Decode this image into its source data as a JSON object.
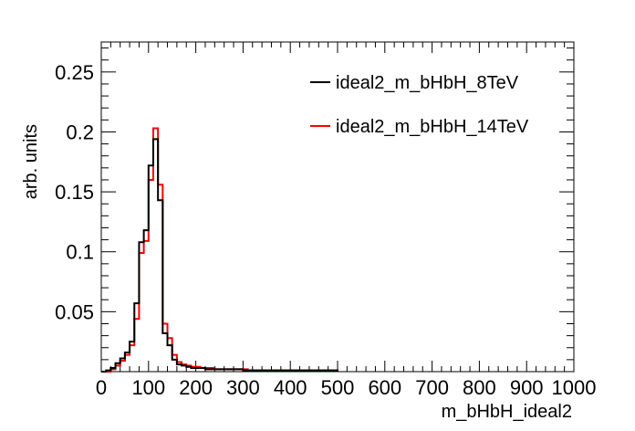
{
  "chart_data": {
    "type": "step-histogram",
    "title": "",
    "xlabel": "m_bHbH_ideal2",
    "ylabel": "arb. units",
    "xlim": [
      0,
      1000
    ],
    "ylim": [
      0,
      0.275
    ],
    "xticks": [
      0,
      100,
      200,
      300,
      400,
      500,
      600,
      700,
      800,
      900,
      1000
    ],
    "yticks": [
      0.05,
      0.1,
      0.15,
      0.2,
      0.25
    ],
    "bin_width": 10,
    "legend_position": "top-right",
    "grid": false,
    "series": [
      {
        "name": "ideal2_m_bHbH_8TeV",
        "color": "#000000",
        "bins_start": 0,
        "values": [
          0.0,
          0.001,
          0.003,
          0.007,
          0.011,
          0.016,
          0.025,
          0.057,
          0.108,
          0.118,
          0.172,
          0.194,
          0.143,
          0.032,
          0.022,
          0.01,
          0.006,
          0.005,
          0.004,
          0.003,
          0.003,
          0.003,
          0.002,
          0.002,
          0.002,
          0.002,
          0.002,
          0.002,
          0.002,
          0.002,
          0.001,
          0.001,
          0.001,
          0.001,
          0.001,
          0.001,
          0.001,
          0.001,
          0.001,
          0.001,
          0.001,
          0.001,
          0.001,
          0.001,
          0.001,
          0.001,
          0.001,
          0.001,
          0.001,
          0.001
        ]
      },
      {
        "name": "ideal2_m_bHbH_14TeV",
        "color": "#ff0000",
        "bins_start": 0,
        "values": [
          0.0,
          0.0,
          0.002,
          0.005,
          0.009,
          0.014,
          0.022,
          0.044,
          0.099,
          0.109,
          0.16,
          0.203,
          0.156,
          0.04,
          0.028,
          0.014,
          0.008,
          0.006,
          0.005,
          0.004,
          0.004,
          0.003,
          0.003,
          0.003,
          0.002,
          0.002,
          0.002,
          0.002,
          0.002,
          0.002,
          0.002,
          0.001,
          0.001,
          0.001,
          0.001,
          0.001,
          0.001,
          0.001,
          0.001,
          0.001,
          0.001,
          0.001,
          0.001,
          0.001,
          0.001,
          0.001,
          0.001,
          0.001,
          0.001,
          0.001
        ]
      }
    ]
  }
}
